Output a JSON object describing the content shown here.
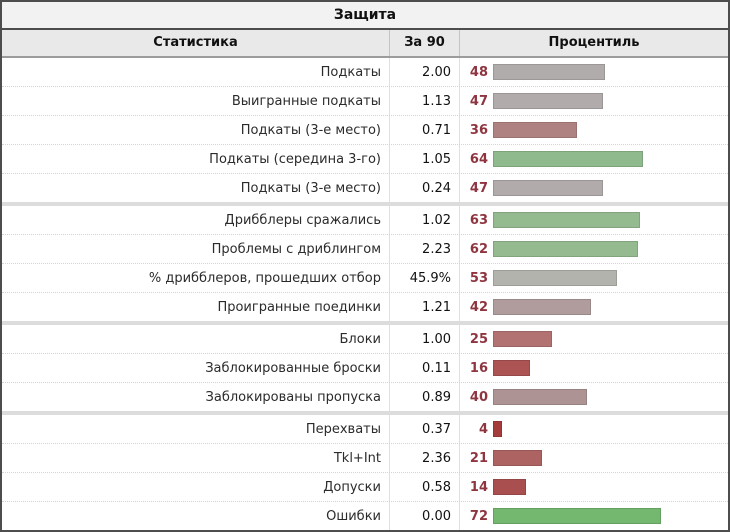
{
  "chart_data": {
    "type": "table",
    "title": "Защита",
    "columns": [
      "Статистика",
      "За 90",
      "Процентиль"
    ],
    "percentile_axis": [
      0,
      100
    ],
    "bar_color_scale": {
      "low": "#a43c3c",
      "mid": "#b1acac",
      "high": "#74b76f"
    },
    "groups": [
      {
        "rows": [
          {
            "stat": "Подкаты",
            "per90": "2.00",
            "percentile": 48,
            "bar_color": "#b1acac"
          },
          {
            "stat": "Выигранные подкаты",
            "per90": "1.13",
            "percentile": 47,
            "bar_color": "#b1abab"
          },
          {
            "stat": "Подкаты (3-е место)",
            "per90": "0.71",
            "percentile": 36,
            "bar_color": "#af8282"
          },
          {
            "stat": "Подкаты (середина 3-го)",
            "per90": "1.05",
            "percentile": 64,
            "bar_color": "#8fba8d"
          },
          {
            "stat": "Подкаты (3-е место)",
            "per90": "0.24",
            "percentile": 47,
            "bar_color": "#b1abab"
          }
        ]
      },
      {
        "rows": [
          {
            "stat": "Дрибблеры сражались",
            "per90": "1.02",
            "percentile": 63,
            "bar_color": "#94ba8f"
          },
          {
            "stat": "Проблемы с дриблингом",
            "per90": "2.23",
            "percentile": 62,
            "bar_color": "#95ba90"
          },
          {
            "stat": "% дрибблеров, прошедших отбор",
            "per90": "45.9%",
            "percentile": 53,
            "bar_color": "#b2b3ac"
          },
          {
            "stat": "Проигранные поединки",
            "per90": "1.21",
            "percentile": 42,
            "bar_color": "#b09c9c"
          }
        ]
      },
      {
        "rows": [
          {
            "stat": "Блоки",
            "per90": "1.00",
            "percentile": 25,
            "bar_color": "#b27272"
          },
          {
            "stat": "Заблокированные броски",
            "per90": "0.11",
            "percentile": 16,
            "bar_color": "#ac5454"
          },
          {
            "stat": "Заблокированы пропуска",
            "per90": "0.89",
            "percentile": 40,
            "bar_color": "#ad9393"
          }
        ]
      },
      {
        "rows": [
          {
            "stat": "Перехваты",
            "per90": "0.37",
            "percentile": 4,
            "bar_color": "#a43c3c"
          },
          {
            "stat": "Tkl+Int",
            "per90": "2.36",
            "percentile": 21,
            "bar_color": "#ae6363"
          },
          {
            "stat": "Допуски",
            "per90": "0.58",
            "percentile": 14,
            "bar_color": "#aa4f4f"
          },
          {
            "stat": "Ошибки",
            "per90": "0.00",
            "percentile": 72,
            "bar_color": "#74b76f"
          }
        ]
      }
    ]
  },
  "colors": {
    "percentile_number_text": "#8e3540",
    "outer_border": "#4d4d4d",
    "header_background": "#e9e9e9",
    "title_background": "#f2f2f2",
    "group_separator": "#dcdcdc"
  }
}
